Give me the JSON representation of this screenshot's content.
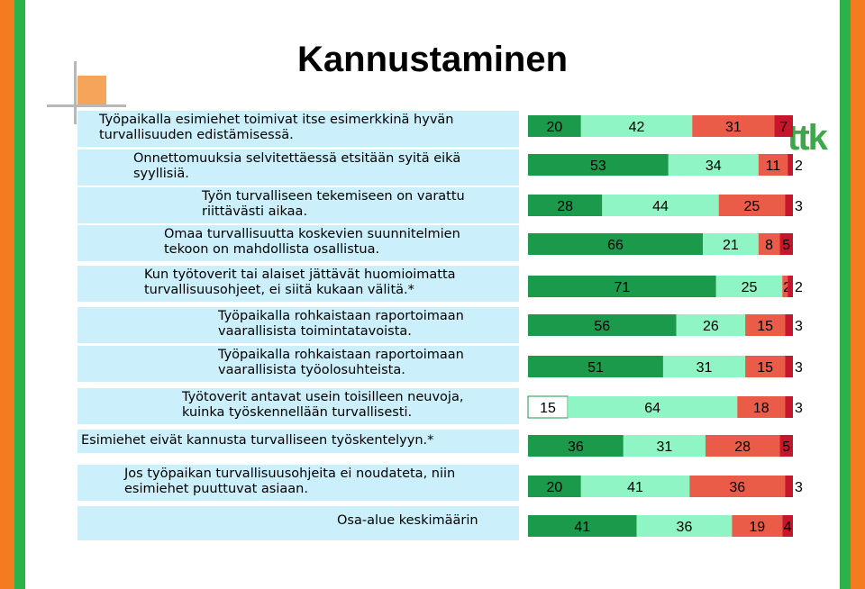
{
  "title": "Kannustaminen",
  "logo_text": "ttk",
  "colors": {
    "dark_green": "#1a9a4a",
    "light_green": "#8ff5c5",
    "light_red": "#ea5c47",
    "dark_red": "#c7162b",
    "label_background": "#cbeffb",
    "stripe_orange": "#f47b20",
    "stripe_green": "#2bb34a",
    "logo_green": "#3da84a"
  },
  "chart_data": {
    "type": "bar",
    "stacked": true,
    "horizontal": true,
    "xlim": [
      0,
      100
    ],
    "grid": false,
    "legend": "none",
    "categories": [
      "Työpaikalla esimiehet toimivat itse esimerkkinä hyvän\nturvallisuuden edistämisessä.",
      "Onnettomuuksia selvitettäessä etsitään syitä eikä\nsyyllisiä.",
      "Työn turvalliseen tekemiseen on varattu\nriittävästi aikaa.",
      "Omaa turvallisuutta koskevien suunnitelmien\ntekoon on mahdollista osallistua.",
      "Kun työtoverit tai alaiset jättävät huomioimatta\nturvallisuusohjeet, ei siitä kukaan välitä.*",
      "Työpaikalla rohkaistaan raportoimaan\nvaarallisista toimintatavoista.",
      "Työpaikalla rohkaistaan raportoimaan\nvaarallisista työolosuhteista.",
      "Työtoverit antavat usein toisilleen neuvoja,\nkuinka työskennellään turvallisesti.",
      "Esimiehet eivät kannusta turvalliseen työskentelyyn.*",
      "Jos työpaikan turvallisuusohjeita ei noudateta, niin\nesimiehet puuttuvat asiaan.",
      "Osa-alue keskimäärin"
    ],
    "series": [
      {
        "values": [
          0,
          0,
          0,
          0,
          0,
          0,
          0,
          15,
          0,
          0,
          0
        ]
      },
      {
        "values": [
          20,
          53,
          28,
          66,
          71,
          56,
          51,
          0,
          36,
          20,
          41
        ]
      },
      {
        "values": [
          42,
          34,
          44,
          21,
          25,
          26,
          31,
          64,
          31,
          41,
          36
        ]
      },
      {
        "values": [
          31,
          11,
          25,
          8,
          2,
          15,
          15,
          18,
          28,
          36,
          19
        ]
      },
      {
        "values": [
          7,
          2,
          3,
          5,
          2,
          3,
          3,
          3,
          5,
          3,
          4
        ]
      }
    ]
  }
}
